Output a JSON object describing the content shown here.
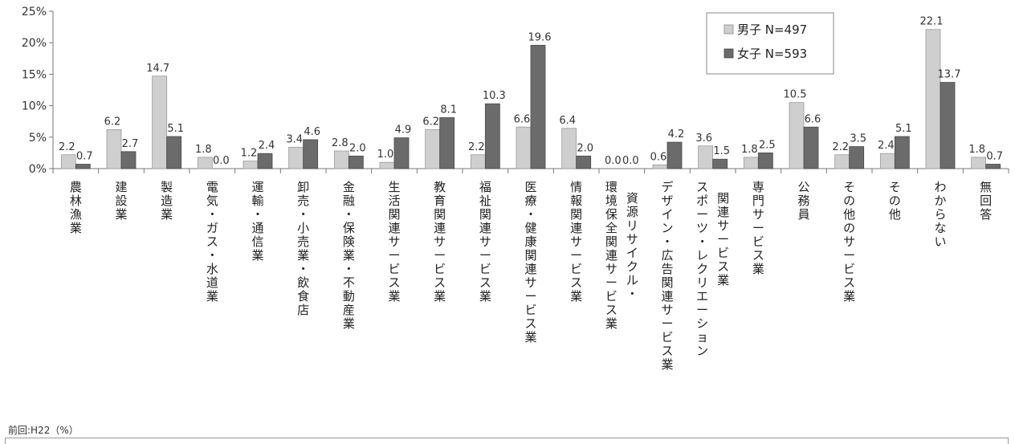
{
  "chart_data": {
    "type": "bar",
    "title": "",
    "xlabel": "",
    "ylabel": "",
    "ylim": [
      0,
      25
    ],
    "yticks": [
      "0%",
      "5%",
      "10%",
      "15%",
      "20%",
      "25%"
    ],
    "categories": [
      "農林漁業",
      "建設業",
      "製造業",
      "電気・ガス・水道業",
      "運輸・通信業",
      "卸売・小売業・飲食店",
      "金融・保険業・不動産業",
      "生活関連サービス業",
      "教育関連サービス業",
      "福祉関連サービス業",
      "医療・健康関連サービス業",
      "情報関連サービス業",
      "環境保全関連サービス業|資源リサイクル・",
      "デザイン・広告関連サービス業",
      "スポーツ・レクリエーション|関連サービス業",
      "専門サービス業",
      "公務員",
      "その他のサービス業",
      "その他",
      "わからない",
      "無回答"
    ],
    "series": [
      {
        "name": "男子 N=497",
        "color": "#cfcfcf",
        "values": [
          2.2,
          6.2,
          14.7,
          1.8,
          1.2,
          3.4,
          2.8,
          1.0,
          6.2,
          2.2,
          6.6,
          6.4,
          0.0,
          0.6,
          3.6,
          1.8,
          10.5,
          2.2,
          2.4,
          22.1,
          1.8
        ]
      },
      {
        "name": "女子 N=593",
        "color": "#6b6b6b",
        "values": [
          0.7,
          2.7,
          5.1,
          0.0,
          2.4,
          4.6,
          2.0,
          4.9,
          8.1,
          10.3,
          19.6,
          2.0,
          0.0,
          4.2,
          1.5,
          2.5,
          6.6,
          3.5,
          5.1,
          13.7,
          0.7
        ]
      }
    ],
    "grid": false,
    "legend_position": "top-right"
  },
  "footer_note": "前回:H22（%）"
}
